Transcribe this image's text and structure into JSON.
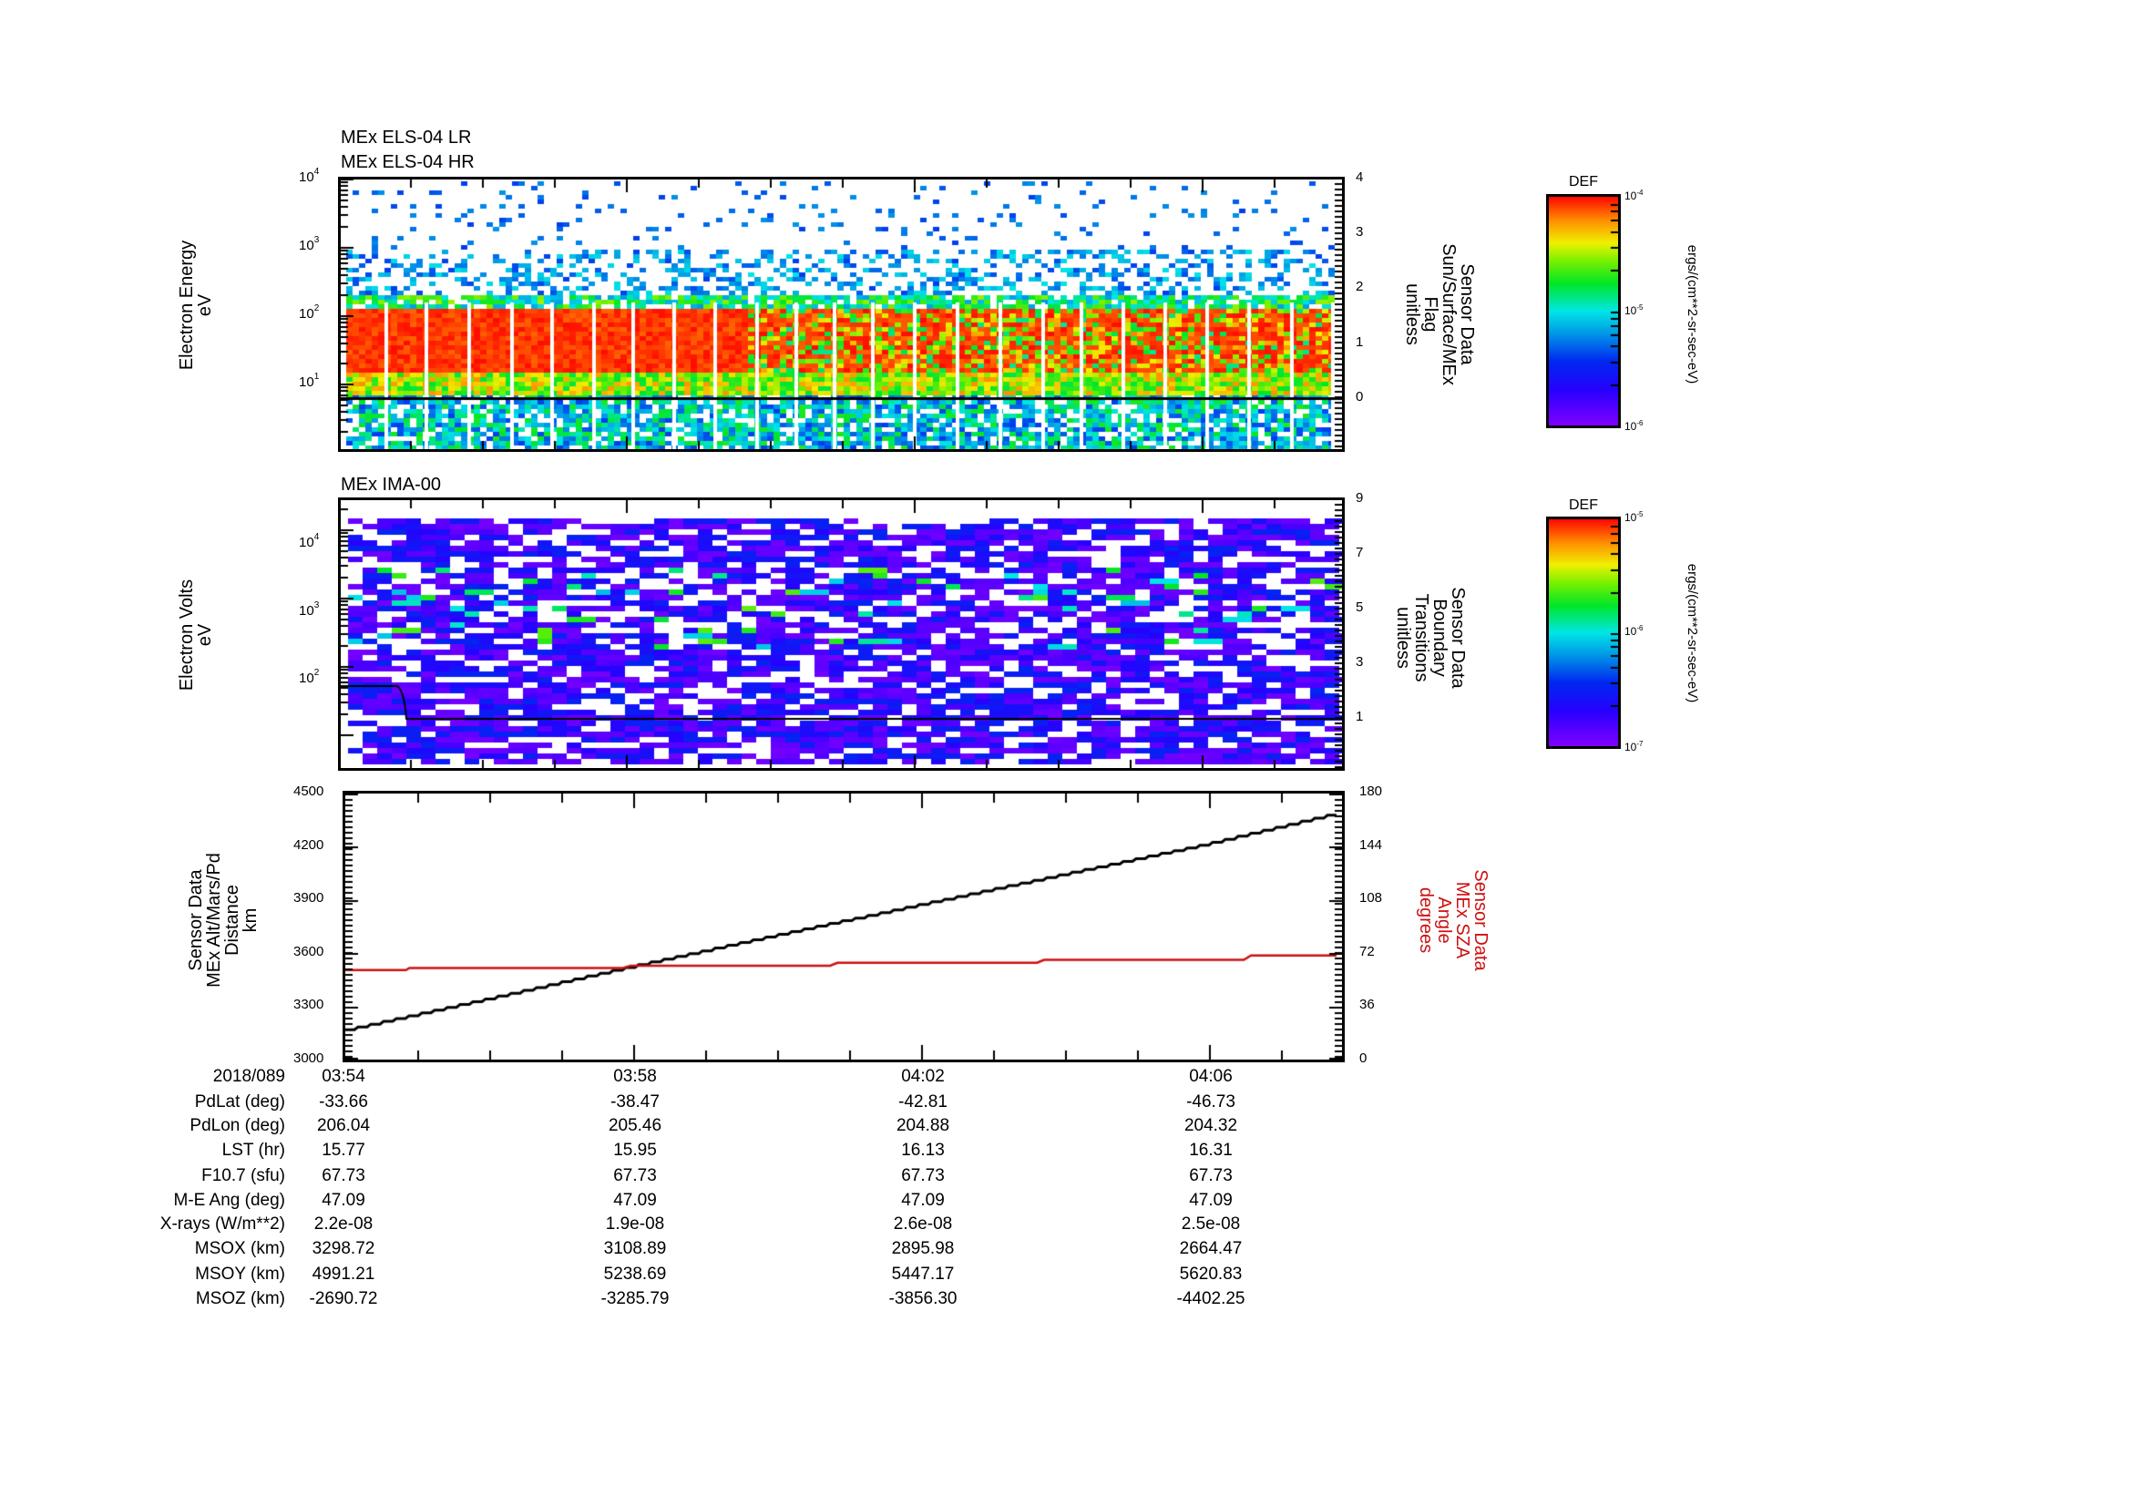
{
  "chart_data": [
    {
      "type": "heatmap",
      "title_lines": [
        "MEx ELS-04 LR",
        "MEx ELS-04 HR"
      ],
      "ylabel": [
        "Electron Energy",
        "eV"
      ],
      "yscale": "log",
      "ylim": [
        1,
        10000
      ],
      "yticks": [
        {
          "base": "10",
          "exp": "1"
        },
        {
          "base": "10",
          "exp": "2"
        },
        {
          "base": "10",
          "exp": "3"
        },
        {
          "base": "10",
          "exp": "4"
        }
      ],
      "y2label": [
        "Sensor Data",
        "Sun/Surface/MEx",
        "Flag",
        "unitless"
      ],
      "y2lim": [
        -0.97,
        4
      ],
      "y2ticks": [
        "0",
        "1",
        "2",
        "3",
        "4"
      ],
      "overlay_line": {
        "name": "Sun/Surface/MEx Flag",
        "value": 0
      },
      "colorbar": {
        "title": "DEF",
        "label": "ergs/(cm**2-sr-sec-eV)",
        "max": {
          "base": "10",
          "exp": "-4"
        },
        "mid": {
          "base": "10",
          "exp": "-5"
        },
        "min": {
          "base": "10",
          "exp": "-6"
        }
      },
      "description": "Intense red band (DEF ~1e-4) between ~15 and ~130 eV throughout, green/yellow shoulders, sparse blue pixels up to 1e4 eV; band becomes patchier after ~04:01"
    },
    {
      "type": "heatmap",
      "title_lines": [
        "MEx IMA-00"
      ],
      "ylabel": [
        "Electron Volts",
        "eV"
      ],
      "yscale": "log",
      "ylim": [
        5,
        40000
      ],
      "yticks": [
        {
          "base": "10",
          "exp": "2"
        },
        {
          "base": "10",
          "exp": "3"
        },
        {
          "base": "10",
          "exp": "4"
        }
      ],
      "y2label": [
        "Sensor Data",
        "Boundary",
        "Transitions",
        "unitless"
      ],
      "y2lim": [
        -0.8,
        9
      ],
      "y2ticks": [
        "1",
        "3",
        "5",
        "7",
        "9"
      ],
      "overlay_line": {
        "name": "Boundary Transitions",
        "start_value": 2.2,
        "step_time": "03:54:50",
        "end_value": 1.0
      },
      "colorbar": {
        "title": "DEF",
        "label": "ergs/(cm**2-sr-sec-eV)",
        "max": {
          "base": "10",
          "exp": "-5"
        },
        "mid": {
          "base": "10",
          "exp": "-6"
        },
        "min": {
          "base": "10",
          "exp": "-7"
        }
      },
      "description": "Sparse purple/blue pixels 10-15000 eV, occasional cyan/green patches near 300-3000 eV"
    },
    {
      "type": "line",
      "ylabel": [
        "Sensor Data",
        "MEx Alt/Mars/Pd",
        "Distance",
        "km"
      ],
      "ylim": [
        3000,
        4500
      ],
      "yticks": [
        "3000",
        "3300",
        "3600",
        "3900",
        "4200",
        "4500"
      ],
      "y2label": [
        "Sensor Data",
        "MEx SZA",
        "Angle",
        "degrees"
      ],
      "y2lim": [
        0,
        180
      ],
      "y2ticks": [
        "0",
        "36",
        "72",
        "108",
        "144",
        "180"
      ],
      "y2color": "#cc1111",
      "xlabel_times": [
        "03:54",
        "03:58",
        "04:02",
        "04:06"
      ],
      "series": [
        {
          "name": "MEx Alt/Mars/Pd Distance (km)",
          "axis": "left",
          "color": "#000000",
          "x_min": [
            0,
            2,
            4,
            6,
            8,
            10,
            12,
            13.9
          ],
          "values": [
            3168,
            3345,
            3525,
            3700,
            3870,
            4040,
            4210,
            4390
          ]
        },
        {
          "name": "MEx SZA Angle (degrees)",
          "axis": "right",
          "color": "#cc1111",
          "x_min": [
            0,
            0.85,
            0.9,
            3.9,
            4.0,
            6.8,
            6.9,
            9.7,
            9.8,
            12.6,
            12.7,
            13.9
          ],
          "values": [
            60.5,
            60.5,
            62.0,
            62.0,
            63.5,
            63.5,
            65.5,
            65.5,
            67.5,
            67.5,
            70.5,
            70.5
          ]
        }
      ]
    }
  ],
  "table": {
    "row_labels": [
      "2018/089",
      "PdLat (deg)",
      "PdLon (deg)",
      "LST (hr)",
      "F10.7 (sfu)",
      "M-E Ang (deg)",
      "X-rays (W/m**2)",
      "MSOX (km)",
      "MSOY (km)",
      "MSOZ (km)"
    ],
    "columns": [
      [
        "03:54",
        "-33.66",
        "206.04",
        "15.77",
        "67.73",
        "47.09",
        "2.2e-08",
        "3298.72",
        "4991.21",
        "-2690.72"
      ],
      [
        "03:58",
        "-38.47",
        "205.46",
        "15.95",
        "67.73",
        "47.09",
        "1.9e-08",
        "3108.89",
        "5238.69",
        "-3285.79"
      ],
      [
        "04:02",
        "-42.81",
        "204.88",
        "16.13",
        "67.73",
        "47.09",
        "2.6e-08",
        "2895.98",
        "5447.17",
        "-3856.30"
      ],
      [
        "04:06",
        "-46.73",
        "204.32",
        "16.31",
        "67.73",
        "47.09",
        "2.5e-08",
        "2664.47",
        "5620.83",
        "-4402.25"
      ]
    ]
  },
  "colors": {
    "axis": "#000000",
    "sza": "#cc1111",
    "background": "#ffffff"
  }
}
